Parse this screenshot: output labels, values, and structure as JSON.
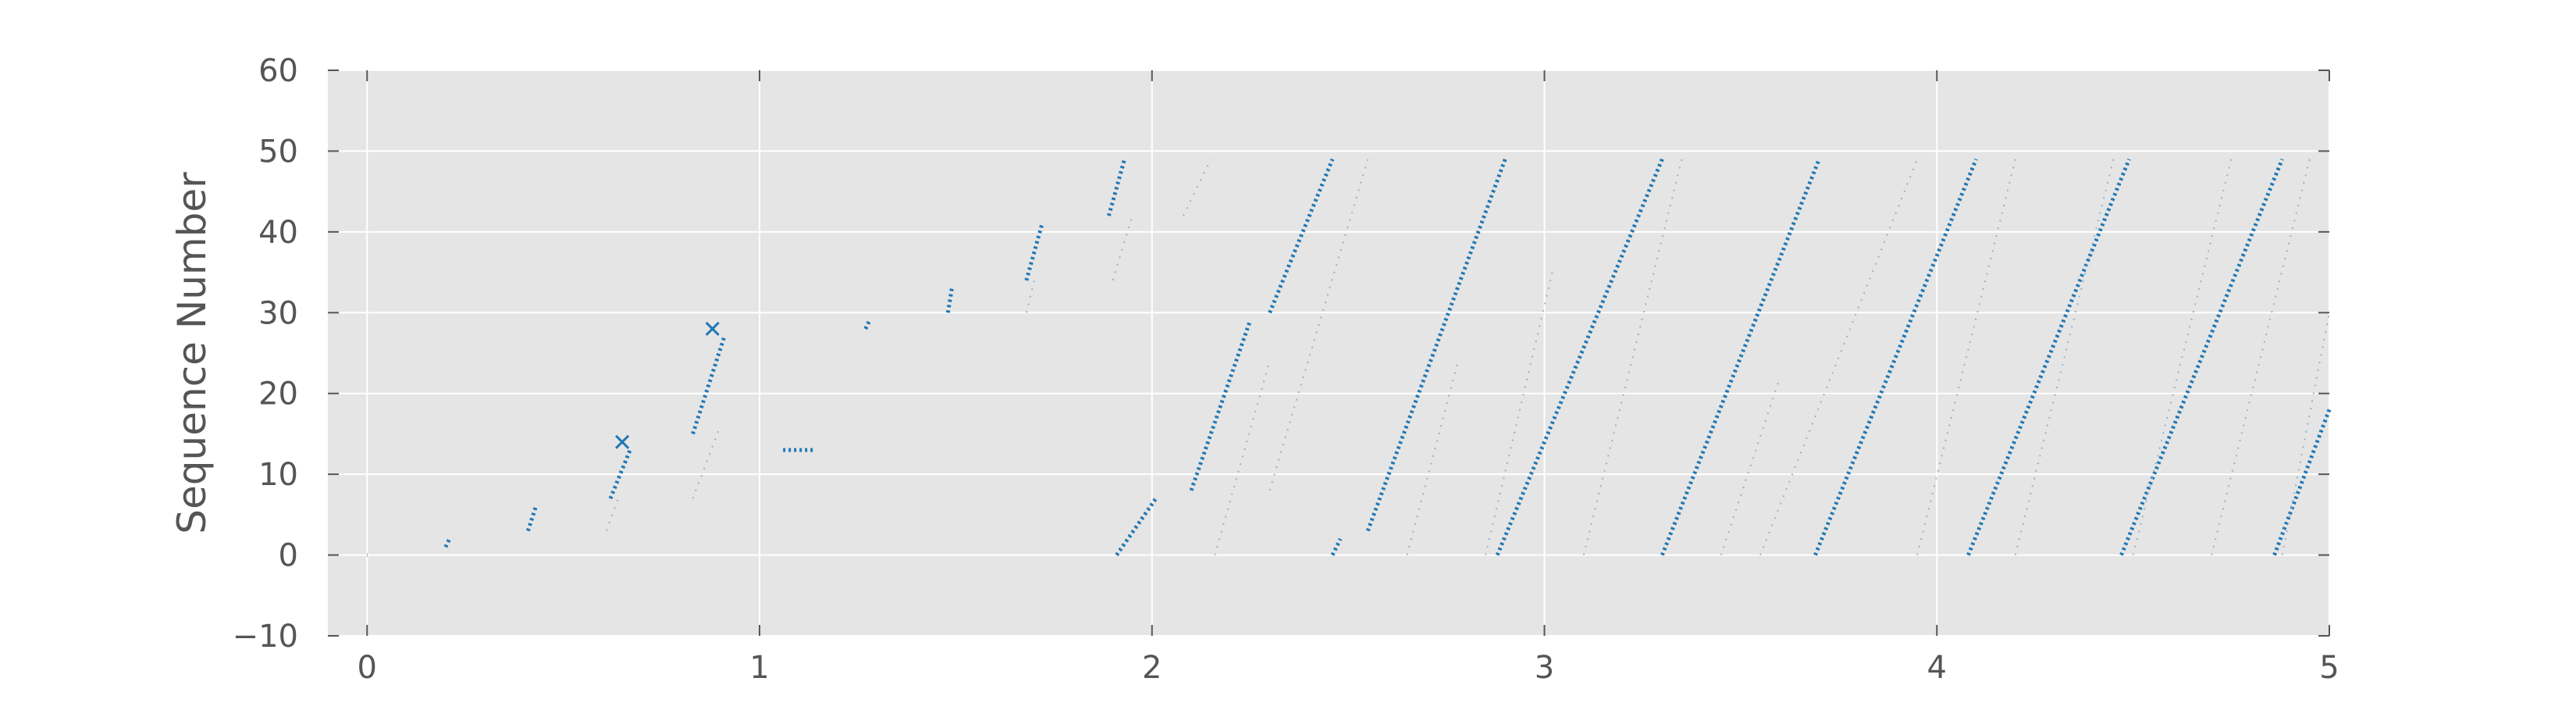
{
  "chart_data": {
    "type": "scatter",
    "title": "",
    "xlabel": "",
    "ylabel": "Sequence Number",
    "xlim": [
      -0.1,
      5
    ],
    "ylim": [
      -10,
      60
    ],
    "x_ticks": [
      0,
      1,
      2,
      3,
      4,
      5
    ],
    "y_ticks": [
      -10,
      0,
      10,
      20,
      30,
      40,
      50,
      60
    ],
    "x_tick_labels": [
      "0",
      "1",
      "2",
      "3",
      "4",
      "5"
    ],
    "y_tick_labels": [
      "−10",
      "0",
      "10",
      "20",
      "30",
      "40",
      "50",
      "60"
    ],
    "grid": true,
    "background": "#e5e5e5",
    "grid_color": "#ffffff",
    "colors": {
      "primary": "#1f77b4",
      "faint": "#8fb4d4"
    },
    "series": [
      {
        "style": "segments",
        "segments": [
          {
            "x0": 0.0,
            "y0": 0,
            "x1": 0.001,
            "y1": 0
          },
          {
            "x0": 0.2,
            "y0": 1,
            "x1": 0.21,
            "y1": 2
          },
          {
            "x0": 0.41,
            "y0": 3,
            "x1": 0.43,
            "y1": 6
          },
          {
            "x0": 0.62,
            "y0": 7,
            "x1": 0.67,
            "y1": 13
          },
          {
            "x0": 0.83,
            "y0": 15,
            "x1": 0.91,
            "y1": 27
          },
          {
            "x0": 1.06,
            "y0": 13,
            "x1": 1.14,
            "y1": 13
          },
          {
            "x0": 1.27,
            "y0": 28,
            "x1": 1.28,
            "y1": 29
          },
          {
            "x0": 1.48,
            "y0": 30,
            "x1": 1.49,
            "y1": 33
          },
          {
            "x0": 1.68,
            "y0": 34,
            "x1": 1.72,
            "y1": 41
          },
          {
            "x0": 1.89,
            "y0": 42,
            "x1": 1.93,
            "y1": 49
          },
          {
            "x0": 1.91,
            "y0": 0,
            "x1": 2.01,
            "y1": 7
          },
          {
            "x0": 2.1,
            "y0": 8,
            "x1": 2.25,
            "y1": 29
          },
          {
            "x0": 2.3,
            "y0": 30,
            "x1": 2.46,
            "y1": 49
          },
          {
            "x0": 2.46,
            "y0": 0,
            "x1": 2.48,
            "y1": 2
          },
          {
            "x0": 2.55,
            "y0": 3,
            "x1": 2.9,
            "y1": 49
          },
          {
            "x0": 2.88,
            "y0": 0,
            "x1": 3.3,
            "y1": 49
          },
          {
            "x0": 3.3,
            "y0": 0,
            "x1": 3.7,
            "y1": 49
          },
          {
            "x0": 3.69,
            "y0": 0,
            "x1": 4.1,
            "y1": 49
          },
          {
            "x0": 4.08,
            "y0": 0,
            "x1": 4.49,
            "y1": 49
          },
          {
            "x0": 4.47,
            "y0": 0,
            "x1": 4.88,
            "y1": 49
          },
          {
            "x0": 4.86,
            "y0": 0,
            "x1": 5.0,
            "y1": 18
          }
        ]
      },
      {
        "style": "faint-segments",
        "segments": [
          {
            "x0": 0.83,
            "y0": 7,
            "x1": 0.9,
            "y1": 16
          },
          {
            "x0": 0.61,
            "y0": 3,
            "x1": 0.64,
            "y1": 7
          },
          {
            "x0": 1.68,
            "y0": 30,
            "x1": 1.7,
            "y1": 34
          },
          {
            "x0": 1.9,
            "y0": 34,
            "x1": 1.95,
            "y1": 42
          },
          {
            "x0": 2.08,
            "y0": 42,
            "x1": 2.15,
            "y1": 49
          },
          {
            "x0": 2.16,
            "y0": 0,
            "x1": 2.3,
            "y1": 24
          },
          {
            "x0": 2.3,
            "y0": 8,
            "x1": 2.55,
            "y1": 49
          },
          {
            "x0": 2.65,
            "y0": 0,
            "x1": 2.78,
            "y1": 24
          },
          {
            "x0": 2.85,
            "y0": 0,
            "x1": 3.02,
            "y1": 35
          },
          {
            "x0": 3.1,
            "y0": 0,
            "x1": 3.35,
            "y1": 49
          },
          {
            "x0": 3.45,
            "y0": 0,
            "x1": 3.6,
            "y1": 22
          },
          {
            "x0": 3.55,
            "y0": 0,
            "x1": 3.95,
            "y1": 49
          },
          {
            "x0": 3.95,
            "y0": 0,
            "x1": 4.2,
            "y1": 49
          },
          {
            "x0": 4.2,
            "y0": 0,
            "x1": 4.45,
            "y1": 49
          },
          {
            "x0": 4.5,
            "y0": 0,
            "x1": 4.75,
            "y1": 49
          },
          {
            "x0": 4.7,
            "y0": 0,
            "x1": 4.95,
            "y1": 49
          },
          {
            "x0": 4.88,
            "y0": 0,
            "x1": 5.0,
            "y1": 30
          }
        ]
      },
      {
        "style": "x-marker",
        "points": [
          {
            "x": 0.65,
            "y": 14
          },
          {
            "x": 0.88,
            "y": 28
          }
        ]
      }
    ]
  }
}
